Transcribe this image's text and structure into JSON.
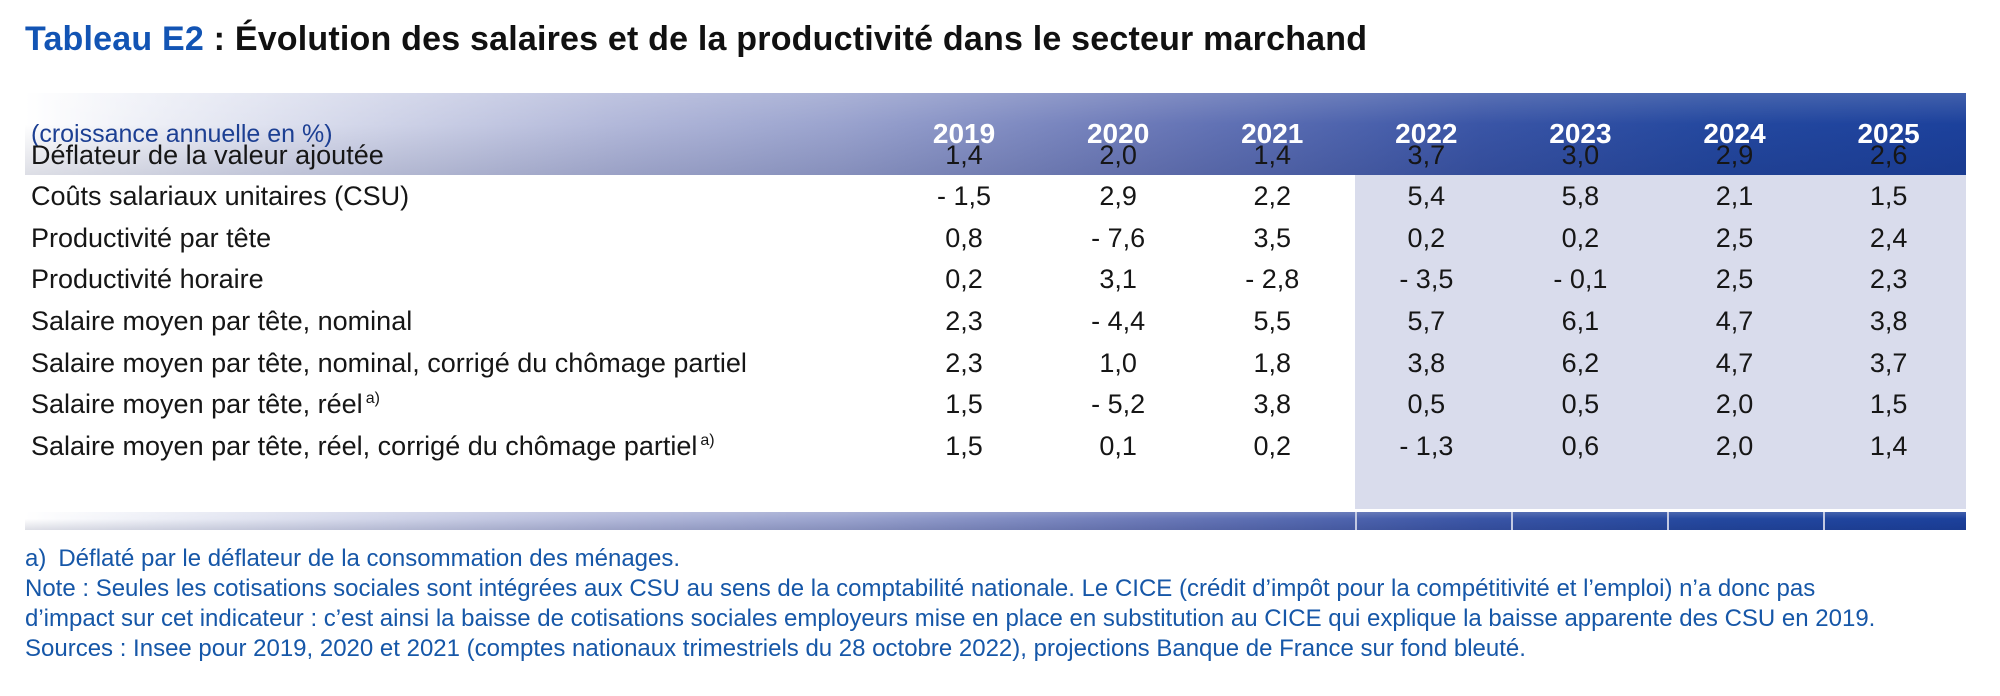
{
  "title": {
    "prefix": "Tableau E2",
    "rest": " : Évolution des salaires et de la productivité dans le secteur marchand"
  },
  "table": {
    "unit_label": "(croissance annuelle en %)",
    "years": [
      "2019",
      "2020",
      "2021",
      "2022",
      "2023",
      "2024",
      "2025"
    ],
    "projection_years": [
      "2022",
      "2023",
      "2024",
      "2025"
    ],
    "projection_note": "projections Banque de France sur fond bleuté",
    "rows": [
      {
        "label": "Déflateur de la valeur ajoutée",
        "sup": "",
        "values": [
          "1,4",
          "2,0",
          "1,4",
          "3,7",
          "3,0",
          "2,9",
          "2,6"
        ]
      },
      {
        "label": "Coûts salariaux unitaires (CSU)",
        "sup": "",
        "values": [
          "- 1,5",
          "2,9",
          "2,2",
          "5,4",
          "5,8",
          "2,1",
          "1,5"
        ]
      },
      {
        "label": "Productivité par tête",
        "sup": "",
        "values": [
          "0,8",
          "- 7,6",
          "3,5",
          "0,2",
          "0,2",
          "2,5",
          "2,4"
        ]
      },
      {
        "label": "Productivité horaire",
        "sup": "",
        "values": [
          "0,2",
          "3,1",
          "- 2,8",
          "- 3,5",
          "- 0,1",
          "2,5",
          "2,3"
        ]
      },
      {
        "label": "Salaire moyen par tête, nominal",
        "sup": "",
        "values": [
          "2,3",
          "- 4,4",
          "5,5",
          "5,7",
          "6,1",
          "4,7",
          "3,8"
        ]
      },
      {
        "label": "Salaire moyen par tête, nominal, corrigé du chômage partiel",
        "sup": "",
        "values": [
          "2,3",
          "1,0",
          "1,8",
          "3,8",
          "6,2",
          "4,7",
          "3,7"
        ]
      },
      {
        "label": "Salaire moyen par tête, réel",
        "sup": "a)",
        "values": [
          "1,5",
          "- 5,2",
          "3,8",
          "0,5",
          "0,5",
          "2,0",
          "1,5"
        ]
      },
      {
        "label": "Salaire moyen par tête, réel, corrigé du chômage partiel",
        "sup": "a)",
        "values": [
          "1,5",
          "0,1",
          "0,2",
          "- 1,3",
          "0,6",
          "2,0",
          "1,4"
        ]
      }
    ]
  },
  "footnotes": {
    "a_label": "a)",
    "a_text": "Déflaté par le déflateur de la consommation des ménages.",
    "note_lines": [
      "Note : Seules les cotisations sociales sont intégrées aux CSU au sens de la comptabilité nationale. Le CICE (crédit d’impôt pour la compétitivité et l’emploi) n’a donc pas",
      "d’impact sur cet indicateur : c’est ainsi la baisse de cotisations sociales employeurs mise en place en substitution au CICE qui explique la baisse apparente des CSU en 2019."
    ],
    "sources": "Sources : Insee pour 2019, 2020 et 2021 (comptes nationaux trimestriels du 28 octobre 2022), projections Banque de France sur fond bleuté."
  },
  "colors": {
    "title_accent": "#1254b4",
    "note_text": "#1657a8",
    "header_label": "#1c3f93",
    "band_dark": "#1c419c",
    "projection_bg": "#d9dcec",
    "body_text": "#161616",
    "year_text": "#ffffff"
  }
}
